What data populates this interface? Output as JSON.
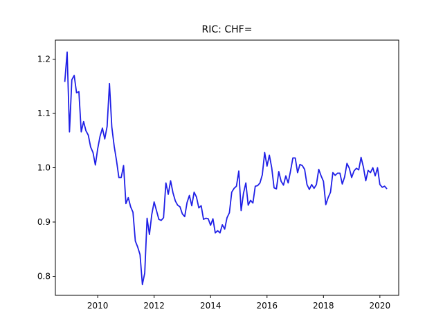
{
  "chart_data": {
    "type": "line",
    "title": "RIC: CHF=",
    "xlabel": "",
    "ylabel": "",
    "x_ticks": [
      "2010",
      "2012",
      "2014",
      "2016",
      "2018",
      "2020"
    ],
    "y_ticks": [
      "0.8",
      "0.9",
      "1.0",
      "1.1",
      "1.2"
    ],
    "xlim": [
      "2008-07",
      "2020-09"
    ],
    "ylim": [
      0.765,
      1.235
    ],
    "grid": false,
    "series": [
      {
        "color": "#1f1fe6",
        "points": [
          [
            "2008-11",
            1.158
          ],
          [
            "2008-12",
            1.213
          ],
          [
            "2009-01",
            1.066
          ],
          [
            "2009-02",
            1.162
          ],
          [
            "2009-03",
            1.17
          ],
          [
            "2009-04",
            1.138
          ],
          [
            "2009-05",
            1.14
          ],
          [
            "2009-06",
            1.066
          ],
          [
            "2009-07",
            1.085
          ],
          [
            "2009-08",
            1.068
          ],
          [
            "2009-09",
            1.06
          ],
          [
            "2009-10",
            1.038
          ],
          [
            "2009-11",
            1.028
          ],
          [
            "2009-12",
            1.005
          ],
          [
            "2010-01",
            1.035
          ],
          [
            "2010-02",
            1.058
          ],
          [
            "2010-03",
            1.073
          ],
          [
            "2010-04",
            1.053
          ],
          [
            "2010-05",
            1.076
          ],
          [
            "2010-06",
            1.155
          ],
          [
            "2010-07",
            1.075
          ],
          [
            "2010-08",
            1.04
          ],
          [
            "2010-09",
            1.013
          ],
          [
            "2010-10",
            0.982
          ],
          [
            "2010-11",
            0.982
          ],
          [
            "2010-12",
            1.004
          ],
          [
            "2011-01",
            0.934
          ],
          [
            "2011-02",
            0.945
          ],
          [
            "2011-03",
            0.928
          ],
          [
            "2011-04",
            0.918
          ],
          [
            "2011-05",
            0.865
          ],
          [
            "2011-06",
            0.854
          ],
          [
            "2011-07",
            0.84
          ],
          [
            "2011-08",
            0.785
          ],
          [
            "2011-09",
            0.806
          ],
          [
            "2011-10",
            0.907
          ],
          [
            "2011-11",
            0.877
          ],
          [
            "2011-12",
            0.914
          ],
          [
            "2012-01",
            0.937
          ],
          [
            "2012-02",
            0.921
          ],
          [
            "2012-03",
            0.905
          ],
          [
            "2012-04",
            0.903
          ],
          [
            "2012-05",
            0.908
          ],
          [
            "2012-06",
            0.972
          ],
          [
            "2012-07",
            0.951
          ],
          [
            "2012-08",
            0.976
          ],
          [
            "2012-09",
            0.954
          ],
          [
            "2012-10",
            0.939
          ],
          [
            "2012-11",
            0.931
          ],
          [
            "2012-12",
            0.928
          ],
          [
            "2013-01",
            0.915
          ],
          [
            "2013-02",
            0.91
          ],
          [
            "2013-03",
            0.936
          ],
          [
            "2013-04",
            0.949
          ],
          [
            "2013-05",
            0.93
          ],
          [
            "2013-06",
            0.955
          ],
          [
            "2013-07",
            0.946
          ],
          [
            "2013-08",
            0.926
          ],
          [
            "2013-09",
            0.93
          ],
          [
            "2013-10",
            0.905
          ],
          [
            "2013-11",
            0.907
          ],
          [
            "2013-12",
            0.906
          ],
          [
            "2014-01",
            0.894
          ],
          [
            "2014-02",
            0.906
          ],
          [
            "2014-03",
            0.88
          ],
          [
            "2014-04",
            0.884
          ],
          [
            "2014-05",
            0.88
          ],
          [
            "2014-06",
            0.895
          ],
          [
            "2014-07",
            0.887
          ],
          [
            "2014-08",
            0.908
          ],
          [
            "2014-09",
            0.917
          ],
          [
            "2014-10",
            0.955
          ],
          [
            "2014-11",
            0.962
          ],
          [
            "2014-12",
            0.966
          ],
          [
            "2015-01",
            0.994
          ],
          [
            "2015-02",
            0.921
          ],
          [
            "2015-03",
            0.953
          ],
          [
            "2015-04",
            0.972
          ],
          [
            "2015-05",
            0.931
          ],
          [
            "2015-06",
            0.94
          ],
          [
            "2015-07",
            0.935
          ],
          [
            "2015-08",
            0.966
          ],
          [
            "2015-09",
            0.967
          ],
          [
            "2015-10",
            0.972
          ],
          [
            "2015-11",
            0.987
          ],
          [
            "2015-12",
            1.028
          ],
          [
            "2016-01",
            1.003
          ],
          [
            "2016-02",
            1.023
          ],
          [
            "2016-03",
            1.0
          ],
          [
            "2016-04",
            0.963
          ],
          [
            "2016-05",
            0.961
          ],
          [
            "2016-06",
            0.993
          ],
          [
            "2016-07",
            0.975
          ],
          [
            "2016-08",
            0.968
          ],
          [
            "2016-09",
            0.985
          ],
          [
            "2016-10",
            0.972
          ],
          [
            "2016-11",
            0.994
          ],
          [
            "2016-12",
            1.018
          ],
          [
            "2017-01",
            1.018
          ],
          [
            "2017-02",
            0.991
          ],
          [
            "2017-03",
            1.006
          ],
          [
            "2017-04",
            1.004
          ],
          [
            "2017-05",
            0.997
          ],
          [
            "2017-06",
            0.969
          ],
          [
            "2017-07",
            0.96
          ],
          [
            "2017-08",
            0.969
          ],
          [
            "2017-09",
            0.962
          ],
          [
            "2017-10",
            0.969
          ],
          [
            "2017-11",
            0.997
          ],
          [
            "2017-12",
            0.985
          ],
          [
            "2018-01",
            0.975
          ],
          [
            "2018-02",
            0.932
          ],
          [
            "2018-03",
            0.945
          ],
          [
            "2018-04",
            0.955
          ],
          [
            "2018-05",
            0.991
          ],
          [
            "2018-06",
            0.986
          ],
          [
            "2018-07",
            0.99
          ],
          [
            "2018-08",
            0.99
          ],
          [
            "2018-09",
            0.97
          ],
          [
            "2018-10",
            0.983
          ],
          [
            "2018-11",
            1.008
          ],
          [
            "2018-12",
            0.999
          ],
          [
            "2019-01",
            0.982
          ],
          [
            "2019-02",
            0.994
          ],
          [
            "2019-03",
            0.999
          ],
          [
            "2019-04",
            0.996
          ],
          [
            "2019-05",
            1.019
          ],
          [
            "2019-06",
            1.001
          ],
          [
            "2019-07",
            0.976
          ],
          [
            "2019-08",
            0.995
          ],
          [
            "2019-09",
            0.991
          ],
          [
            "2019-10",
            1.0
          ],
          [
            "2019-11",
            0.985
          ],
          [
            "2019-12",
            1.0
          ],
          [
            "2020-01",
            0.969
          ],
          [
            "2020-02",
            0.964
          ],
          [
            "2020-03",
            0.966
          ],
          [
            "2020-04",
            0.961
          ]
        ]
      }
    ]
  }
}
